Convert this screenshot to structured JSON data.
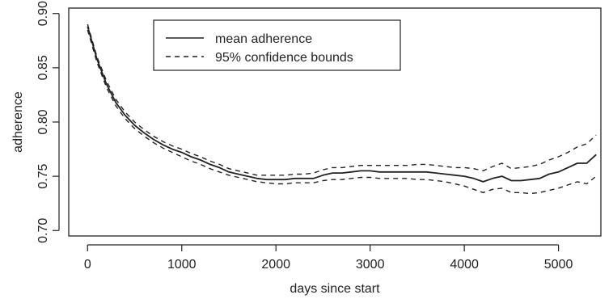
{
  "chart_data": {
    "type": "line",
    "xlabel": "days since start",
    "ylabel": "adherence",
    "xlim": [
      -200,
      5450
    ],
    "ylim": [
      0.695,
      0.905
    ],
    "xticks": [
      0,
      1000,
      2000,
      3000,
      4000,
      5000
    ],
    "xtick_labels": [
      "0",
      "1000",
      "2000",
      "3000",
      "4000",
      "5000"
    ],
    "yticks": [
      0.7,
      0.75,
      0.8,
      0.85,
      0.9
    ],
    "ytick_labels": [
      "0.70",
      "0.75",
      "0.80",
      "0.85",
      "0.90"
    ],
    "grid": false,
    "legend_position": "top-center",
    "x": [
      0,
      100,
      200,
      300,
      400,
      500,
      600,
      700,
      800,
      900,
      1000,
      1100,
      1200,
      1300,
      1400,
      1500,
      1600,
      1700,
      1800,
      1900,
      2000,
      2100,
      2200,
      2300,
      2400,
      2500,
      2600,
      2700,
      2800,
      2900,
      3000,
      3100,
      3200,
      3300,
      3400,
      3500,
      3600,
      3700,
      3800,
      3900,
      4000,
      4100,
      4200,
      4300,
      4400,
      4500,
      4600,
      4700,
      4800,
      4900,
      5000,
      5100,
      5200,
      5300,
      5400
    ],
    "series": [
      {
        "name": "mean adherence",
        "style": "solid",
        "values": [
          0.888,
          0.858,
          0.835,
          0.818,
          0.806,
          0.797,
          0.79,
          0.784,
          0.779,
          0.775,
          0.772,
          0.768,
          0.765,
          0.761,
          0.758,
          0.754,
          0.752,
          0.75,
          0.748,
          0.747,
          0.747,
          0.747,
          0.748,
          0.748,
          0.748,
          0.751,
          0.753,
          0.753,
          0.754,
          0.755,
          0.755,
          0.754,
          0.754,
          0.754,
          0.754,
          0.754,
          0.754,
          0.753,
          0.752,
          0.751,
          0.75,
          0.748,
          0.745,
          0.748,
          0.75,
          0.746,
          0.746,
          0.747,
          0.748,
          0.752,
          0.754,
          0.758,
          0.762,
          0.762,
          0.77
        ]
      },
      {
        "name": "95% confidence bounds",
        "style": "dashed",
        "values": [
          0.89,
          0.86,
          0.838,
          0.821,
          0.809,
          0.8,
          0.793,
          0.787,
          0.782,
          0.778,
          0.775,
          0.771,
          0.768,
          0.764,
          0.761,
          0.757,
          0.755,
          0.753,
          0.751,
          0.751,
          0.751,
          0.751,
          0.752,
          0.752,
          0.753,
          0.756,
          0.758,
          0.758,
          0.759,
          0.76,
          0.76,
          0.76,
          0.76,
          0.76,
          0.76,
          0.761,
          0.761,
          0.76,
          0.759,
          0.758,
          0.758,
          0.757,
          0.755,
          0.759,
          0.762,
          0.757,
          0.758,
          0.759,
          0.761,
          0.765,
          0.768,
          0.772,
          0.777,
          0.78,
          0.788
        ]
      },
      {
        "name": "",
        "style": "dashed",
        "values": [
          0.885,
          0.855,
          0.832,
          0.815,
          0.803,
          0.794,
          0.787,
          0.781,
          0.776,
          0.772,
          0.768,
          0.764,
          0.761,
          0.757,
          0.754,
          0.751,
          0.749,
          0.747,
          0.745,
          0.744,
          0.743,
          0.743,
          0.744,
          0.744,
          0.744,
          0.746,
          0.747,
          0.747,
          0.748,
          0.749,
          0.749,
          0.748,
          0.748,
          0.748,
          0.748,
          0.747,
          0.747,
          0.746,
          0.745,
          0.743,
          0.741,
          0.738,
          0.735,
          0.738,
          0.739,
          0.735,
          0.735,
          0.734,
          0.735,
          0.737,
          0.739,
          0.742,
          0.745,
          0.743,
          0.75
        ]
      }
    ],
    "legend": [
      {
        "label": "mean adherence",
        "style": "solid"
      },
      {
        "label": "95% confidence bounds",
        "style": "dashed"
      }
    ]
  }
}
